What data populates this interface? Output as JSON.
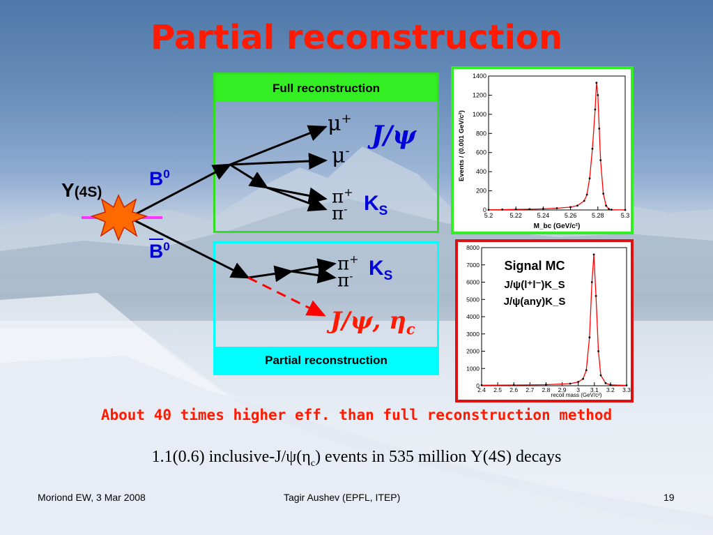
{
  "slide": {
    "title": "Partial reconstruction",
    "full_reco_label": "Full reconstruction",
    "partial_reco_label": "Partial reconstruction",
    "upsilon_label": "Υ",
    "upsilon_sub": "(4S)",
    "b0_label": "B",
    "b0_sup": "0",
    "b0bar_label": "B",
    "b0bar_sup": "0",
    "mu_plus": "μ",
    "mu_plus_sup": "+",
    "mu_minus": "μ",
    "mu_minus_sup": "-",
    "jpsi_full": "J/ψ",
    "pi_plus_1": "π",
    "pi_plus_1_sup": "+",
    "pi_minus_1": "π",
    "pi_minus_1_sup": "-",
    "ks_1": "K",
    "ks_1_sub": "S",
    "pi_plus_2": "π",
    "pi_plus_2_sup": "+",
    "pi_minus_2": "π",
    "pi_minus_2_sup": "-",
    "ks_2": "K",
    "ks_2_sub": "S",
    "jpsi_etac": "J/ψ, η",
    "jpsi_etac_sub": "c",
    "efficiency_note": "About 40 times higher eff. than full reconstruction method",
    "events_note_pre": "1.1(0.6) inclusive-J/ψ(η",
    "events_note_sub": "c",
    "events_note_post": ") events in 535 million Υ(4S) decays",
    "footer_left": "Moriond EW, 3 Mar 2008",
    "footer_mid": "Tagir Aushev (EPFL, ITEP)",
    "footer_right": "19"
  },
  "colors": {
    "title": "#ff1a00",
    "blue_text": "#0000d8",
    "full_panel": "#33ee22",
    "partial_panel": "#00ffff",
    "plot2_border": "#dd1111",
    "fit_curve": "#ff0000",
    "dashed_line": "#ff0000",
    "star_fill": "#ff6a00",
    "upsilon_line": "#ff33ff"
  },
  "chart_data": [
    {
      "type": "line",
      "xlabel": "M_bc (GeV/c²)",
      "ylabel": "Events / (0.001 GeV/c²)",
      "xlim": [
        5.2,
        5.3
      ],
      "ylim": [
        0,
        1400
      ],
      "x_ticks": [
        "5.2",
        "5.22",
        "5.24",
        "5.26",
        "5.28",
        "5.3"
      ],
      "y_ticks": [
        "0",
        "200",
        "400",
        "600",
        "800",
        "1000",
        "1200",
        "1400"
      ],
      "series": [
        {
          "x": [
            5.2,
            5.21,
            5.22,
            5.23,
            5.24,
            5.25,
            5.26,
            5.265,
            5.27,
            5.272,
            5.274,
            5.276,
            5.278,
            5.279,
            5.28,
            5.281,
            5.282,
            5.284,
            5.286,
            5.288,
            5.29,
            5.3
          ],
          "y": [
            2,
            4,
            6,
            8,
            12,
            18,
            30,
            45,
            95,
            160,
            330,
            640,
            1050,
            1330,
            1200,
            850,
            520,
            170,
            45,
            10,
            3,
            0
          ]
        }
      ]
    },
    {
      "type": "line",
      "xlabel": "recoil mass (GeV/c²)",
      "xlim": [
        2.4,
        3.3
      ],
      "ylim": [
        0,
        8000
      ],
      "x_ticks": [
        "2.4",
        "2.5",
        "2.6",
        "2.7",
        "2.8",
        "2.9",
        "3",
        "3.1",
        "3.2",
        "3.3"
      ],
      "y_ticks": [
        "0",
        "1000",
        "2000",
        "3000",
        "4000",
        "5000",
        "6000",
        "7000",
        "8000"
      ],
      "legend": [
        "Signal MC",
        "J/ψ(l⁺l⁻)K_S",
        "J/ψ(any)K_S"
      ],
      "series": [
        {
          "x": [
            2.4,
            2.6,
            2.8,
            2.95,
            3.0,
            3.03,
            3.05,
            3.07,
            3.085,
            3.097,
            3.11,
            3.125,
            3.14,
            3.17,
            3.2,
            3.3
          ],
          "y": [
            30,
            40,
            60,
            120,
            220,
            400,
            900,
            2800,
            6000,
            7600,
            5200,
            2000,
            600,
            150,
            50,
            20
          ]
        }
      ]
    }
  ]
}
